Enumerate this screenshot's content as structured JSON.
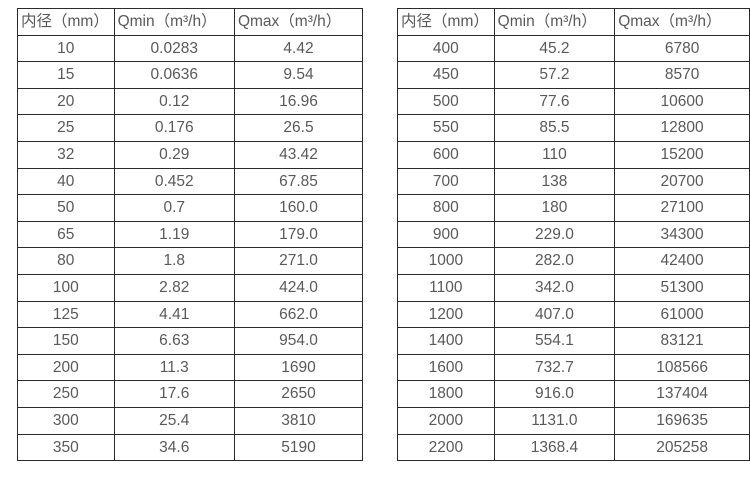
{
  "colors": {
    "border": "#2b2b2b",
    "text": "#595959",
    "background": "#ffffff"
  },
  "chart_data": {
    "type": "table",
    "title": "",
    "tables": [
      {
        "headers": [
          "内径（mm）",
          "Qmin（m³/h）",
          "Qmax（m³/h）"
        ],
        "rows": [
          [
            "10",
            "0.0283",
            "4.42"
          ],
          [
            "15",
            "0.0636",
            "9.54"
          ],
          [
            "20",
            "0.12",
            "16.96"
          ],
          [
            "25",
            "0.176",
            "26.5"
          ],
          [
            "32",
            "0.29",
            "43.42"
          ],
          [
            "40",
            "0.452",
            "67.85"
          ],
          [
            "50",
            "0.7",
            "160.0"
          ],
          [
            "65",
            "1.19",
            "179.0"
          ],
          [
            "80",
            "1.8",
            "271.0"
          ],
          [
            "100",
            "2.82",
            "424.0"
          ],
          [
            "125",
            "4.41",
            "662.0"
          ],
          [
            "150",
            "6.63",
            "954.0"
          ],
          [
            "200",
            "11.3",
            "1690"
          ],
          [
            "250",
            "17.6",
            "2650"
          ],
          [
            "300",
            "25.4",
            "3810"
          ],
          [
            "350",
            "34.6",
            "5190"
          ]
        ]
      },
      {
        "headers": [
          "内径（mm）",
          "Qmin（m³/h）",
          "Qmax（m³/h）"
        ],
        "rows": [
          [
            "400",
            "45.2",
            "6780"
          ],
          [
            "450",
            "57.2",
            "8570"
          ],
          [
            "500",
            "77.6",
            "10600"
          ],
          [
            "550",
            "85.5",
            "12800"
          ],
          [
            "600",
            "110",
            "15200"
          ],
          [
            "700",
            "138",
            "20700"
          ],
          [
            "800",
            "180",
            "27100"
          ],
          [
            "900",
            "229.0",
            "34300"
          ],
          [
            "1000",
            "282.0",
            "42400"
          ],
          [
            "1100",
            "342.0",
            "51300"
          ],
          [
            "1200",
            "407.0",
            "61000"
          ],
          [
            "1400",
            "554.1",
            "83121"
          ],
          [
            "1600",
            "732.7",
            "108566"
          ],
          [
            "1800",
            "916.0",
            "137404"
          ],
          [
            "2000",
            "1131.0",
            "169635"
          ],
          [
            "2200",
            "1368.4",
            "205258"
          ]
        ]
      }
    ]
  }
}
